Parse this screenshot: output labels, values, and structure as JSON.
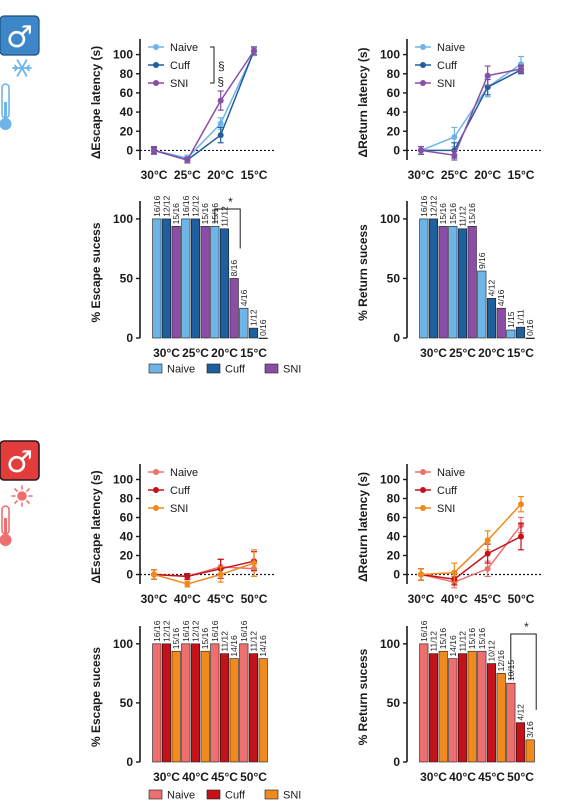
{
  "colors": {
    "cold": {
      "Naive": "#6fb4e6",
      "Cuff": "#1f5f9e",
      "SNI": "#8a4ea6"
    },
    "hot": {
      "Naive": "#ef6f6f",
      "Cuff": "#c4121b",
      "SNI": "#f08a1d"
    },
    "male_badge_cold": "#3d87c9",
    "male_badge_hot": "#e23c3c"
  },
  "icons": {
    "cold_male": "male-symbol-icon",
    "cold_snow": "snowflake-icon",
    "cold_thermo": "thermometer-icon",
    "hot_male": "male-symbol-icon",
    "hot_sun": "sun-icon",
    "hot_thermo": "thermometer-icon",
    "male_symbol": "♂"
  },
  "legend_groups": [
    "Naive",
    "Cuff",
    "SNI"
  ],
  "chart_data": [
    {
      "panel": "A",
      "type": "line",
      "palette": "cold",
      "ylabel": "ΔEscape latency (s)",
      "categories": [
        "30°C",
        "25°C",
        "20°C",
        "15°C"
      ],
      "ylim": [
        -10,
        110
      ],
      "yticks": [
        0,
        20,
        40,
        60,
        80,
        100
      ],
      "legend": "top-left",
      "series": [
        {
          "name": "Naive",
          "values": [
            0,
            -8,
            28,
            103
          ],
          "err": [
            3,
            3,
            6,
            4
          ]
        },
        {
          "name": "Cuff",
          "values": [
            0,
            -10,
            16,
            104
          ],
          "err": [
            3,
            3,
            8,
            4
          ]
        },
        {
          "name": "SNI",
          "values": [
            0,
            -10,
            52,
            104
          ],
          "err": [
            4,
            3,
            10,
            4
          ]
        }
      ],
      "annotations": [
        {
          "text": "§",
          "kind": "legend-bracket"
        },
        {
          "text": "§",
          "x": "20°C",
          "y": 68
        }
      ]
    },
    {
      "panel": "B",
      "type": "line",
      "palette": "cold",
      "ylabel": "ΔReturn latency (s)",
      "categories": [
        "30°C",
        "25°C",
        "20°C",
        "15°C"
      ],
      "ylim": [
        -10,
        110
      ],
      "yticks": [
        0,
        20,
        40,
        60,
        80,
        100
      ],
      "legend": "top-left",
      "series": [
        {
          "name": "Naive",
          "values": [
            0,
            14,
            66,
            90
          ],
          "err": [
            4,
            10,
            10,
            8
          ]
        },
        {
          "name": "Cuff",
          "values": [
            0,
            0,
            66,
            84
          ],
          "err": [
            4,
            8,
            8,
            4
          ]
        },
        {
          "name": "SNI",
          "values": [
            0,
            -5,
            78,
            85
          ],
          "err": [
            4,
            5,
            10,
            4
          ]
        }
      ],
      "annotations": []
    },
    {
      "panel": "C",
      "type": "bar",
      "palette": "cold",
      "ylabel": "% Escape sucess",
      "categories": [
        "30°C",
        "25°C",
        "20°C",
        "15°C"
      ],
      "ylim": [
        0,
        110
      ],
      "yticks": [
        0,
        50,
        100
      ],
      "series": [
        {
          "name": "Naive",
          "values": [
            100,
            100,
            93.75,
            25
          ],
          "labels": [
            "16/16",
            "16/16",
            "15/16",
            "4/16"
          ]
        },
        {
          "name": "Cuff",
          "values": [
            100,
            100,
            91.7,
            8.3
          ],
          "labels": [
            "12/12",
            "12/12",
            "11/12",
            "1/12"
          ]
        },
        {
          "name": "SNI",
          "values": [
            93.75,
            93.75,
            50,
            0
          ],
          "labels": [
            "15/16",
            "15/16",
            "8/16",
            "0/16"
          ]
        }
      ],
      "annotations": [
        {
          "text": "*",
          "kind": "bracket",
          "category": "20°C",
          "from": "Naive",
          "to": "SNI"
        }
      ]
    },
    {
      "panel": "D",
      "type": "bar",
      "palette": "cold",
      "ylabel": "% Return sucess",
      "categories": [
        "30°C",
        "25°C",
        "20°C",
        "15°C"
      ],
      "ylim": [
        0,
        110
      ],
      "yticks": [
        0,
        50,
        100
      ],
      "series": [
        {
          "name": "Naive",
          "values": [
            100,
            93.75,
            56.25,
            6.7
          ],
          "labels": [
            "16/16",
            "15/16",
            "9/16",
            "1/15"
          ]
        },
        {
          "name": "Cuff",
          "values": [
            100,
            91.7,
            33.3,
            9.1
          ],
          "labels": [
            "12/12",
            "11/12",
            "4/12",
            "1/11"
          ]
        },
        {
          "name": "SNI",
          "values": [
            93.75,
            93.75,
            25,
            0
          ],
          "labels": [
            "15/16",
            "15/16",
            "4/16",
            "0/16"
          ]
        }
      ],
      "annotations": []
    },
    {
      "panel": "E",
      "type": "line",
      "palette": "hot",
      "ylabel": "ΔEscape latency (s)",
      "categories": [
        "30°C",
        "40°C",
        "45°C",
        "50°C"
      ],
      "ylim": [
        -10,
        110
      ],
      "yticks": [
        0,
        20,
        40,
        60,
        80,
        100
      ],
      "legend": "top-left",
      "series": [
        {
          "name": "Naive",
          "values": [
            0,
            -2,
            8,
            6
          ],
          "err": [
            5,
            3,
            8,
            8
          ]
        },
        {
          "name": "Cuff",
          "values": [
            0,
            -2,
            6,
            14
          ],
          "err": [
            5,
            3,
            10,
            10
          ]
        },
        {
          "name": "SNI",
          "values": [
            0,
            -10,
            0,
            12
          ],
          "err": [
            5,
            3,
            8,
            14
          ]
        }
      ],
      "annotations": []
    },
    {
      "panel": "F",
      "type": "line",
      "palette": "hot",
      "ylabel": "ΔReturn latency (s)",
      "categories": [
        "30°C",
        "40°C",
        "45°C",
        "50°C"
      ],
      "ylim": [
        -10,
        110
      ],
      "yticks": [
        0,
        20,
        40,
        60,
        80,
        100
      ],
      "legend": "top-left",
      "series": [
        {
          "name": "Naive",
          "values": [
            0,
            -8,
            6,
            52
          ],
          "err": [
            6,
            6,
            8,
            8
          ]
        },
        {
          "name": "Cuff",
          "values": [
            0,
            -5,
            22,
            40
          ],
          "err": [
            6,
            6,
            10,
            14
          ]
        },
        {
          "name": "SNI",
          "values": [
            0,
            2,
            36,
            74
          ],
          "err": [
            6,
            10,
            10,
            8
          ]
        }
      ],
      "annotations": []
    },
    {
      "panel": "G",
      "type": "bar",
      "palette": "hot",
      "ylabel": "% Escape sucess",
      "categories": [
        "30°C",
        "40°C",
        "45°C",
        "50°C"
      ],
      "ylim": [
        0,
        110
      ],
      "yticks": [
        0,
        50,
        100
      ],
      "series": [
        {
          "name": "Naive",
          "values": [
            100,
            100,
            100,
            100
          ],
          "labels": [
            "16/16",
            "16/16",
            "16/16",
            "16/16"
          ]
        },
        {
          "name": "Cuff",
          "values": [
            100,
            100,
            91.7,
            91.7
          ],
          "labels": [
            "12/12",
            "12/12",
            "11/12",
            "11/12"
          ]
        },
        {
          "name": "SNI",
          "values": [
            93.75,
            93.75,
            87.5,
            87.5
          ],
          "labels": [
            "15/16",
            "15/16",
            "14/16",
            "14/16"
          ]
        }
      ],
      "annotations": []
    },
    {
      "panel": "H",
      "type": "bar",
      "palette": "hot",
      "ylabel": "% Return sucess",
      "categories": [
        "30°C",
        "40°C",
        "45°C",
        "50°C"
      ],
      "ylim": [
        0,
        110
      ],
      "yticks": [
        0,
        50,
        100
      ],
      "series": [
        {
          "name": "Naive",
          "values": [
            100,
            87.5,
            93.75,
            66.7
          ],
          "labels": [
            "16/16",
            "14/16",
            "15/16",
            "10/15"
          ]
        },
        {
          "name": "Cuff",
          "values": [
            91.7,
            91.7,
            83.3,
            33.3
          ],
          "labels": [
            "11/12",
            "11/12",
            "10/12",
            "4/12"
          ]
        },
        {
          "name": "SNI",
          "values": [
            93.75,
            93.75,
            75,
            18.75
          ],
          "labels": [
            "15/16",
            "15/16",
            "12/16",
            "3/16"
          ]
        }
      ],
      "annotations": [
        {
          "text": "*",
          "kind": "bracket",
          "category": "50°C",
          "from": "Naive",
          "to": "SNI"
        }
      ]
    }
  ]
}
